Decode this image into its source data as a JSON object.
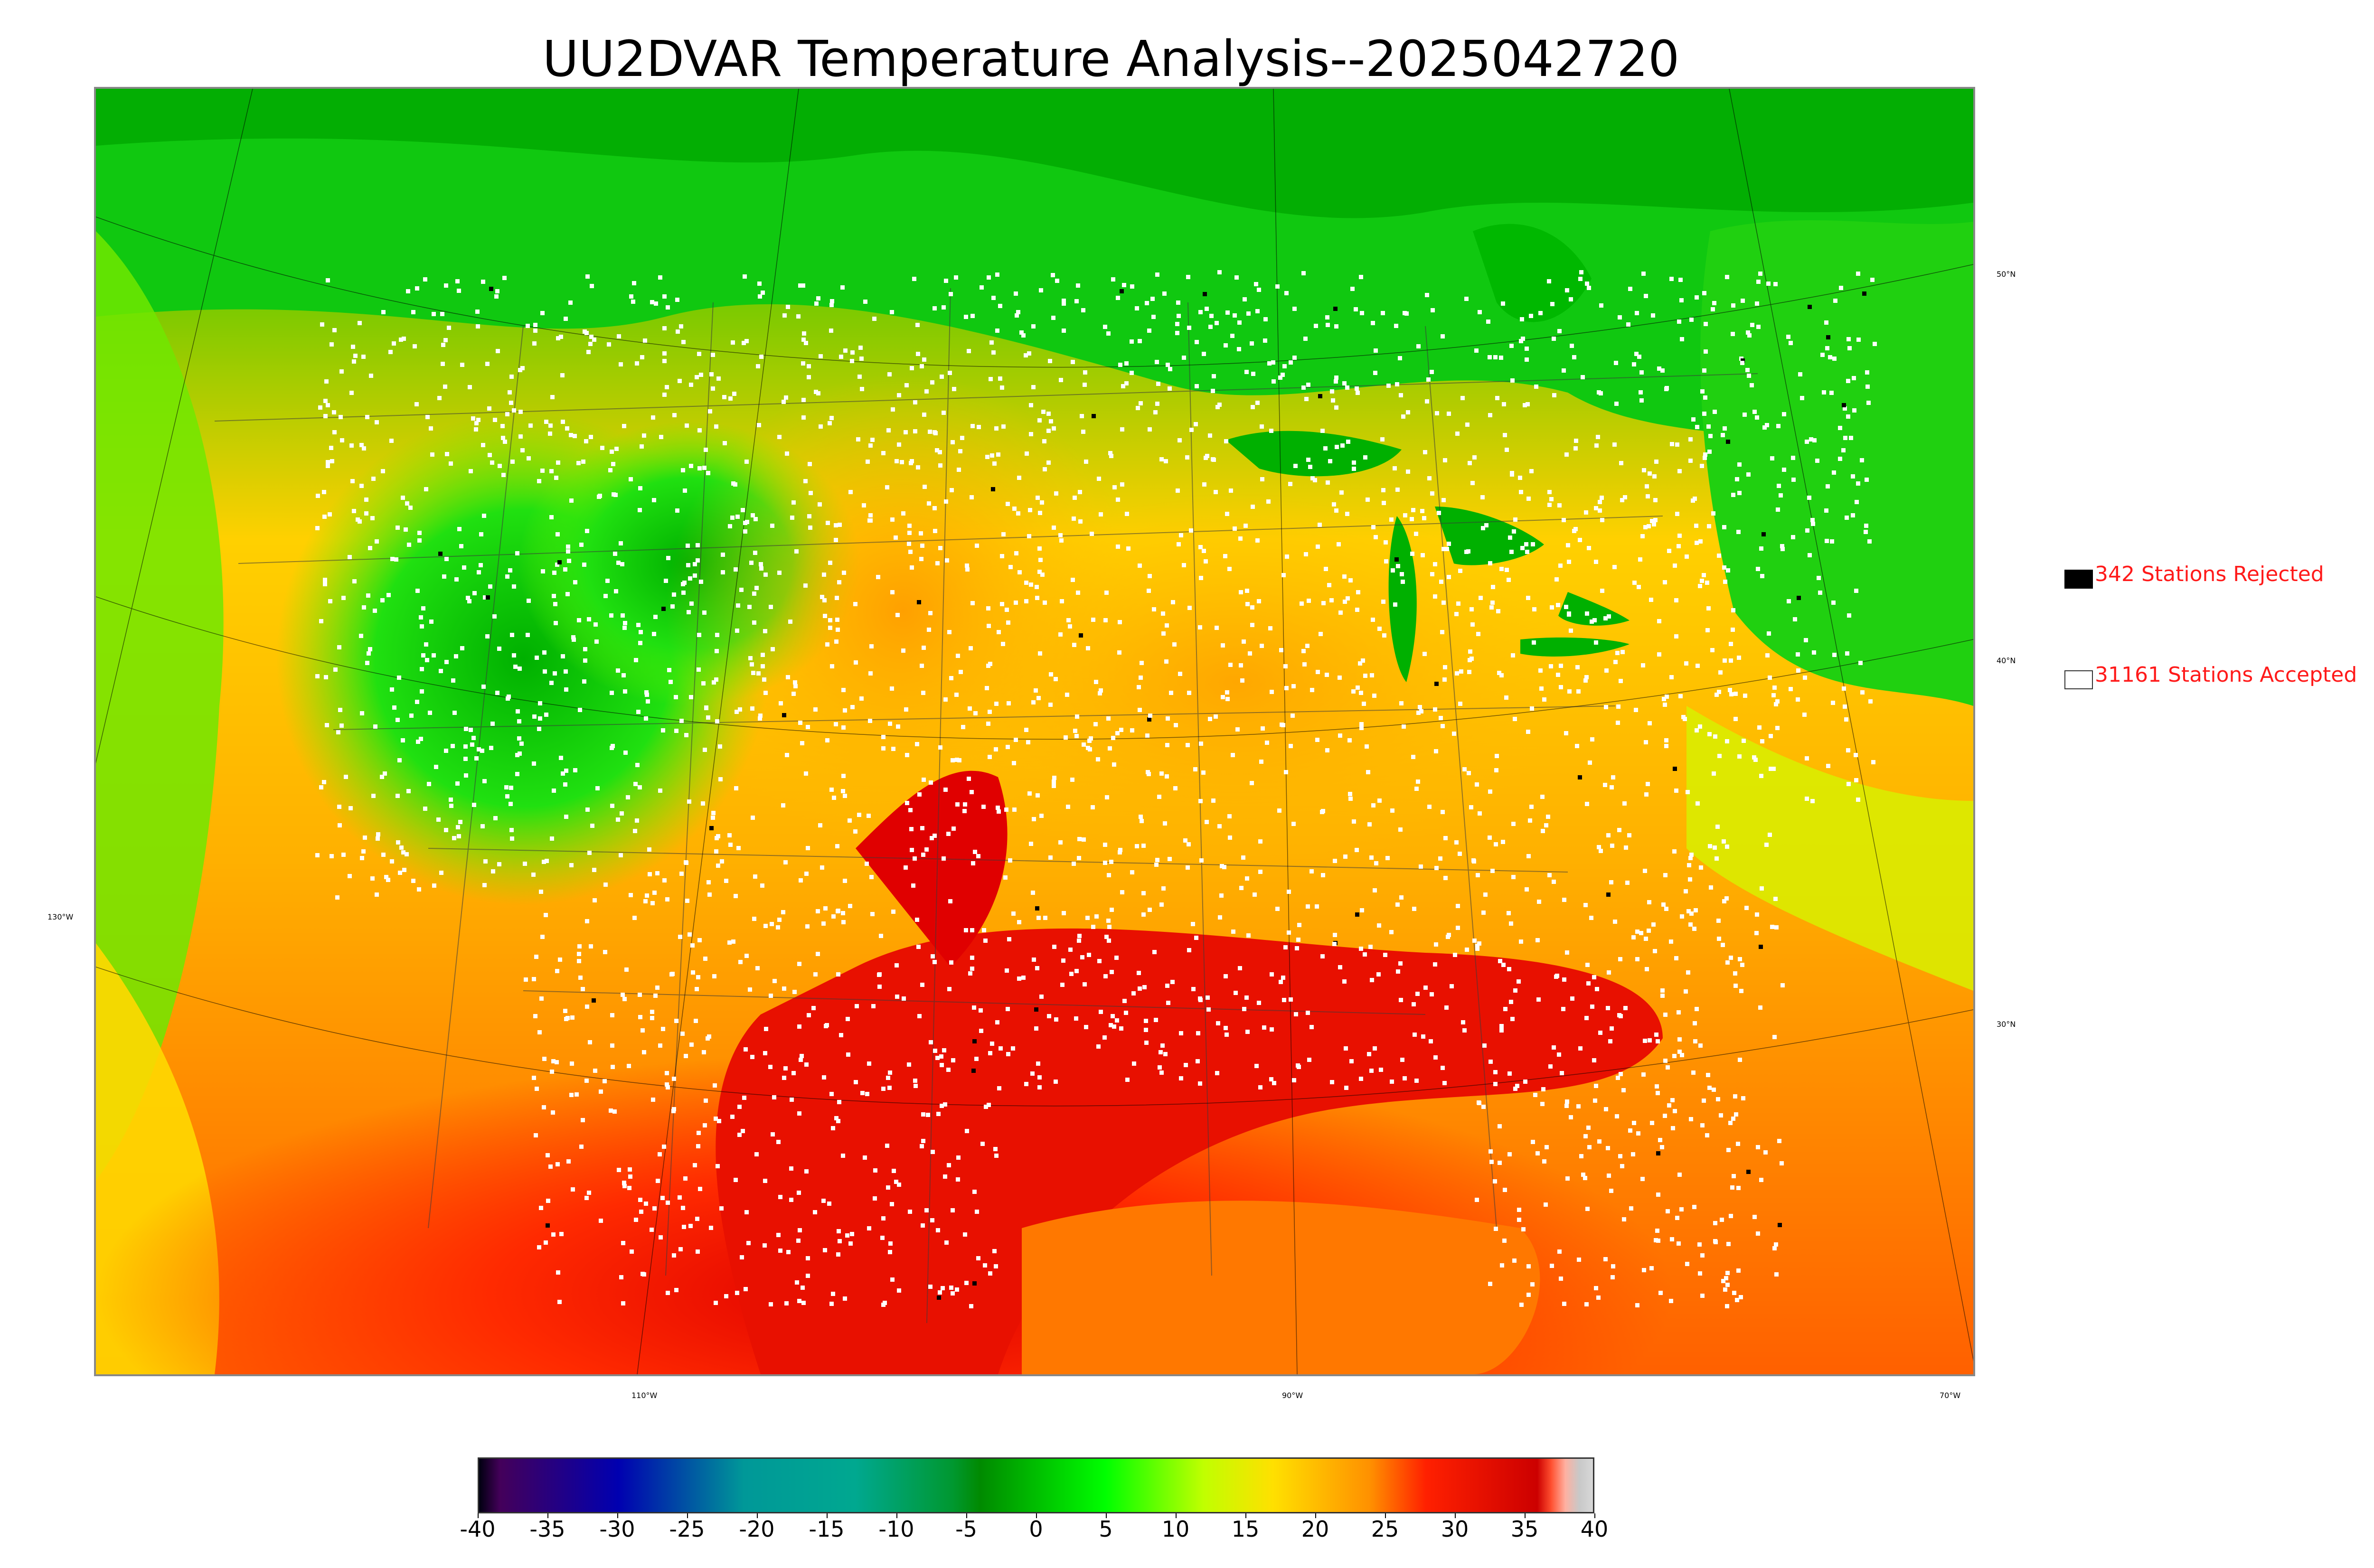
{
  "title": "UU2DVAR Temperature Analysis--2025042720",
  "legend": {
    "rejected_label": "342 Stations Rejected",
    "accepted_label": "31161 Stations Accepted",
    "rejected_color": "#000000",
    "accepted_color": "#ffffff"
  },
  "map": {
    "longitude_labels": [
      "110°W",
      "90°W",
      "70°W",
      "130°W"
    ],
    "latitude_labels": [
      "50°N",
      "40°N",
      "30°N"
    ],
    "station_markers": "white squares (accepted), black squares (rejected)"
  },
  "colorbar": {
    "ticks": [
      "-40",
      "-35",
      "-30",
      "-25",
      "-20",
      "-15",
      "-10",
      "-5",
      "0",
      "5",
      "10",
      "15",
      "20",
      "25",
      "30",
      "35",
      "40"
    ],
    "min": -40,
    "max": 40,
    "stops": [
      {
        "v": -40,
        "c": "#000010"
      },
      {
        "v": -38.5,
        "c": "#44005a"
      },
      {
        "v": -30,
        "c": "#0000b0"
      },
      {
        "v": -21,
        "c": "#009898"
      },
      {
        "v": -13,
        "c": "#00a890"
      },
      {
        "v": -6,
        "c": "#009830"
      },
      {
        "v": -4,
        "c": "#008a00"
      },
      {
        "v": 5,
        "c": "#00ff00"
      },
      {
        "v": 12,
        "c": "#c0ff00"
      },
      {
        "v": 17,
        "c": "#ffe000"
      },
      {
        "v": 24,
        "c": "#ff9000"
      },
      {
        "v": 28,
        "c": "#ff2000"
      },
      {
        "v": 36,
        "c": "#cc0000"
      },
      {
        "v": 37,
        "c": "#ff5030"
      },
      {
        "v": 38,
        "c": "#ffb0a0"
      },
      {
        "v": 39,
        "c": "#c8c8c8"
      },
      {
        "v": 40,
        "c": "#d8d8d8"
      }
    ]
  }
}
